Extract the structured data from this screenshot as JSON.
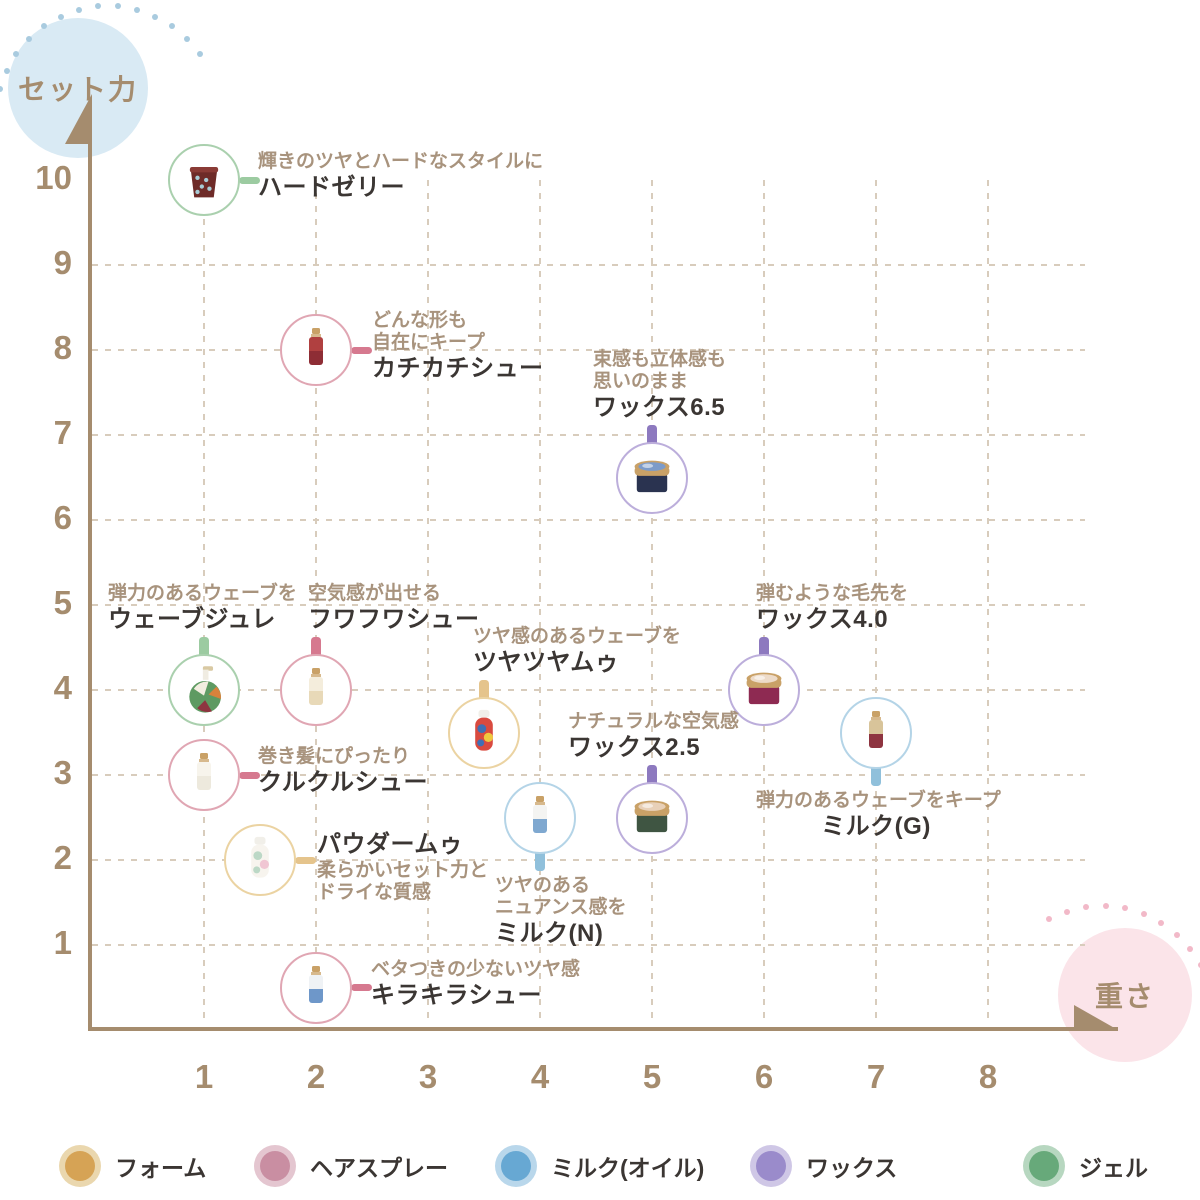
{
  "chart_data": {
    "type": "scatter",
    "title": "",
    "x_axis": {
      "label": "重さ",
      "ticks": [
        1,
        2,
        3,
        4,
        5,
        6,
        7,
        8
      ],
      "range": [
        0,
        9
      ]
    },
    "y_axis": {
      "label": "セット力",
      "ticks": [
        10,
        9,
        8,
        7,
        6,
        5,
        4,
        3,
        2,
        1
      ],
      "gridline_ticks": [
        1,
        2,
        3,
        4,
        5,
        6,
        7,
        8,
        9
      ],
      "range": [
        0,
        11
      ]
    },
    "grid": true,
    "legend_position": "bottom",
    "categories": {
      "foam": {
        "label": "フォーム",
        "main": "#D6A355",
        "halo": "#EAD7AE",
        "stroke": "#EBD3A2",
        "connector": "#E5C48C"
      },
      "spray": {
        "label": "ヘアスプレー",
        "main": "#C98EA2",
        "halo": "#E4C6D0",
        "stroke": "#E0A6B3",
        "connector": "#D6798F"
      },
      "milk": {
        "label": "ミルク(オイル)",
        "main": "#67A8D3",
        "halo": "#B9D7EB",
        "stroke": "#B4D4E7",
        "connector": "#90C0DB"
      },
      "wax": {
        "label": "ワックス",
        "main": "#9A8BCB",
        "halo": "#CFC7E6",
        "stroke": "#BCAEDB",
        "connector": "#8D79BF"
      },
      "gel": {
        "label": "ジェル",
        "main": "#67A97A",
        "halo": "#B7D7C0",
        "stroke": "#AAD0AE",
        "connector": "#9CCBA1"
      }
    },
    "legend_order": [
      "foam",
      "spray",
      "milk",
      "wax",
      "gel"
    ],
    "products": [
      {
        "name": "ハードゼリー",
        "tagline": [
          "輝きのツヤとハードなスタイルに"
        ],
        "x": 1,
        "y": 10,
        "category": "gel",
        "label_side": "right",
        "label_dx": 54,
        "icon": {
          "type": "jar",
          "colors": [
            "#6E2B28",
            "#8A3B36",
            "#A8CCD6"
          ]
        }
      },
      {
        "name": "カチカチシュー",
        "tagline": [
          "どんな形も",
          "自在にキープ"
        ],
        "x": 2,
        "y": 8,
        "category": "spray",
        "label_side": "right",
        "label_dx": 56,
        "icon": {
          "type": "spray",
          "colors": [
            "#8E2D35",
            "#B04040",
            "#C9A167"
          ]
        }
      },
      {
        "name": "ワックス6.5",
        "tagline": [
          "束感も立体感も",
          "思いのまま"
        ],
        "x": 5,
        "y": 6.5,
        "category": "wax",
        "label_side": "above",
        "label_dx": -59,
        "icon": {
          "type": "tin",
          "colors": [
            "#2A3350",
            "#C9A167",
            "#7C9BC9"
          ]
        }
      },
      {
        "name": "ウェーブジュレ",
        "tagline": [
          "弾力のあるウェーブを"
        ],
        "x": 1,
        "y": 4,
        "category": "gel",
        "label_side": "above",
        "label_dx": -96,
        "icon": {
          "type": "pump",
          "colors": [
            "#5E9A62",
            "#D8823C",
            "#8E3440"
          ]
        }
      },
      {
        "name": "フワフワシュー",
        "tagline": [
          "空気感が出せる"
        ],
        "x": 2,
        "y": 4,
        "category": "spray",
        "label_side": "above",
        "label_dx": -8,
        "icon": {
          "type": "spray",
          "colors": [
            "#E8D9B8",
            "#F4EDDC",
            "#C9A167"
          ]
        }
      },
      {
        "name": "ツヤツヤムゥ",
        "tagline": [
          "ツヤ感のあるウェーブを"
        ],
        "x": 3.5,
        "y": 3.5,
        "category": "foam",
        "label_side": "above",
        "label_dx": -11,
        "icon": {
          "type": "bottle",
          "colors": [
            "#D94A3F",
            "#3F6FB5",
            "#EFC93F"
          ]
        }
      },
      {
        "name": "ワックス4.0",
        "tagline": [
          "弾むような毛先を"
        ],
        "x": 6,
        "y": 4,
        "category": "wax",
        "label_side": "above",
        "label_dx": -8,
        "icon": {
          "type": "tin",
          "colors": [
            "#8E2A52",
            "#C9A167",
            "#EDDBC9"
          ]
        }
      },
      {
        "name": "クルクルシュー",
        "tagline": [
          "巻き髪にぴったり"
        ],
        "x": 1,
        "y": 3,
        "category": "spray",
        "label_side": "right",
        "label_dx": 54,
        "icon": {
          "type": "spray",
          "colors": [
            "#EDE9DD",
            "#F7F4EC",
            "#C9A167"
          ]
        }
      },
      {
        "name": "ワックス2.5",
        "tagline": [
          "ナチュラルな空気感"
        ],
        "x": 5,
        "y": 2.5,
        "category": "wax",
        "label_side": "above",
        "label_dx": -84,
        "icon": {
          "type": "tin",
          "colors": [
            "#3F5542",
            "#C9A167",
            "#E8D0B8"
          ]
        }
      },
      {
        "name": "ミルク(G)",
        "tagline": [
          "弾力のあるウェーブをキープ"
        ],
        "x": 7,
        "y": 3.5,
        "category": "milk",
        "label_side": "below-center",
        "label_dx": -120,
        "icon": {
          "type": "spray",
          "colors": [
            "#8E3440",
            "#D8C49A",
            "#C9A167"
          ]
        }
      },
      {
        "name": "パウダームゥ",
        "tagline": [
          "柔らかいセット力と",
          "ドライな質感"
        ],
        "x": 1.5,
        "y": 2,
        "category": "foam",
        "label_side": "right-name-first",
        "label_dx": 57,
        "icon": {
          "type": "bottle",
          "colors": [
            "#F7F4EE",
            "#BCD8C6",
            "#F0C6D3"
          ]
        }
      },
      {
        "name": "ミルク(N)",
        "tagline": [
          "ツヤのある",
          "ニュアンス感を"
        ],
        "x": 4,
        "y": 2.5,
        "category": "milk",
        "label_side": "below",
        "label_dx": -45,
        "icon": {
          "type": "spray",
          "colors": [
            "#7FA8D0",
            "#F4F4F2",
            "#C9A167"
          ]
        }
      },
      {
        "name": "キラキラシュー",
        "tagline": [
          "ベタつきの少ないツヤ感"
        ],
        "x": 2,
        "y": 0.5,
        "category": "spray",
        "label_side": "right",
        "label_dx": 55,
        "icon": {
          "type": "spray",
          "colors": [
            "#6E97C9",
            "#EFF2F5",
            "#C9A167"
          ]
        }
      }
    ]
  },
  "colors": {
    "axis": "#A58C6E",
    "tick_text": "#A58C6E",
    "gridline": "#D8CCBC",
    "tagline_text": "#A8937D",
    "name_text": "#3B3633",
    "badge_blue_bg": "#D9EAF4",
    "badge_blue_dot": "#A9CBDF",
    "badge_pink_bg": "#FBE4E9",
    "badge_pink_dot": "#F2B9C8",
    "background": "#FFFFFF"
  }
}
